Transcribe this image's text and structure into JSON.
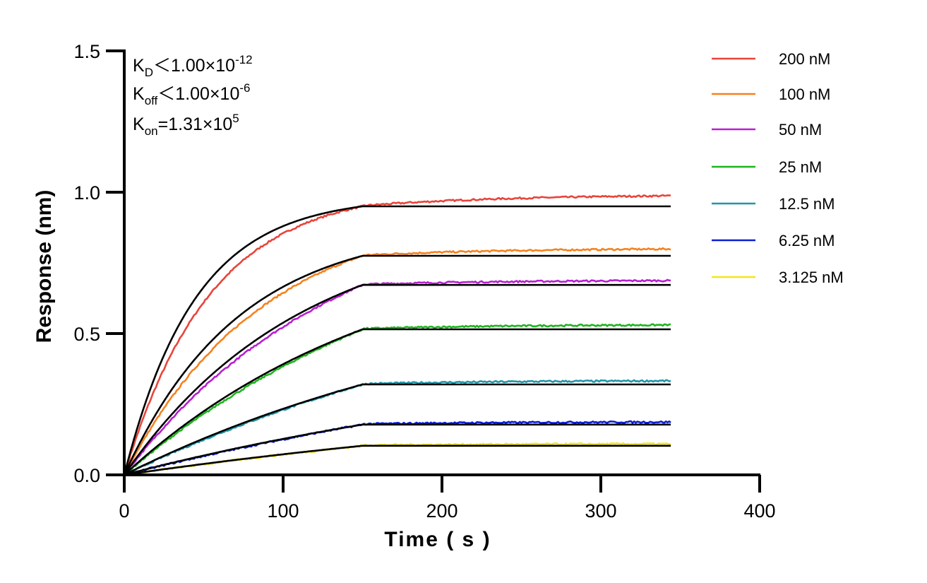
{
  "chart_data": {
    "type": "line",
    "title": "",
    "xlabel": "Time ( s )",
    "ylabel": "Response (nm)",
    "xlim": [
      0,
      400
    ],
    "ylim": [
      0,
      1.5
    ],
    "x_ticks": [
      "0",
      "100",
      "200",
      "300",
      "400"
    ],
    "y_ticks": [
      "0.0",
      "0.5",
      "1.0",
      "1.5"
    ],
    "grid": false,
    "legend_position": "top-right",
    "annotations": {
      "kd": {
        "base": "K",
        "sub": "D",
        "rel": "＜",
        "mant": "1.00×10",
        "exp": "-12"
      },
      "koff": {
        "base": "K",
        "sub": "off",
        "rel": "＜",
        "mant": "1.00×10",
        "exp": "-6"
      },
      "kon": {
        "base": "K",
        "sub": "on",
        "rel": "=",
        "mant": "1.31×10",
        "exp": "5"
      }
    },
    "association_end": 150,
    "time_end": 344,
    "series": [
      {
        "name": "200 nM",
        "color": "#e8443a",
        "plateau": 0.95,
        "kobs": 0.0225,
        "drift": 0.04
      },
      {
        "name": "100 nM",
        "color": "#f5821f",
        "plateau": 0.775,
        "kobs": 0.014,
        "drift": 0.025
      },
      {
        "name": "50 nM",
        "color": "#b81fd1",
        "plateau": 0.672,
        "kobs": 0.009,
        "drift": 0.015
      },
      {
        "name": "25 nM",
        "color": "#1db51d",
        "plateau": 0.515,
        "kobs": 0.006,
        "drift": 0.015
      },
      {
        "name": "12.5 nM",
        "color": "#2196a8",
        "plateau": 0.32,
        "kobs": 0.004,
        "drift": 0.012
      },
      {
        "name": "6.25 nM",
        "color": "#0a1ed4",
        "plateau": 0.178,
        "kobs": 0.003,
        "drift": 0.008
      },
      {
        "name": "3.125 nM",
        "color": "#f2e51c",
        "plateau": 0.103,
        "kobs": 0.0025,
        "drift": 0.005
      }
    ],
    "fit_color": "#000000"
  }
}
